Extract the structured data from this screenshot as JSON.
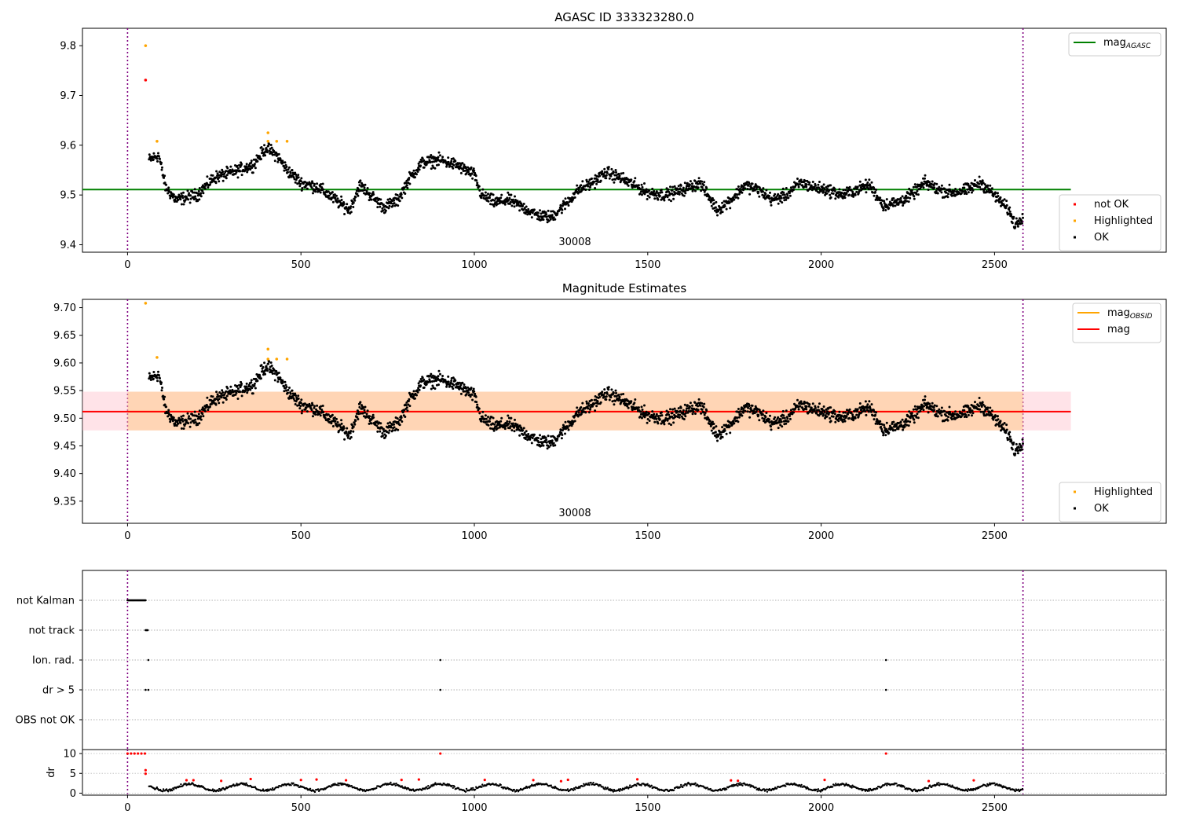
{
  "chart_data": [
    {
      "type": "scatter",
      "title": "AGASC ID 333323280.0",
      "annotation": "30008",
      "xlim": [
        -130,
        2995
      ],
      "ylim": [
        9.385,
        9.835
      ],
      "xticks": [
        0,
        500,
        1000,
        1500,
        2000,
        2500
      ],
      "yticks": [
        9.4,
        9.5,
        9.6,
        9.7,
        9.8
      ],
      "vlines": [
        0,
        2582
      ],
      "hline": {
        "name": "mag_AGASC",
        "value": 9.511,
        "x": [
          -130,
          2720
        ],
        "color": "#008000"
      },
      "legend_top": [
        {
          "label": "mag",
          "sub": "AGASC",
          "color": "#008000",
          "kind": "line"
        }
      ],
      "legend_bottom": [
        {
          "label": "not OK",
          "color": "#ff0000",
          "kind": "dot"
        },
        {
          "label": "Highlighted",
          "color": "#ffa500",
          "kind": "dot"
        },
        {
          "label": "OK",
          "color": "#000000",
          "kind": "dot"
        }
      ],
      "trend": [
        [
          60,
          9.57
        ],
        [
          90,
          9.58
        ],
        [
          110,
          9.515
        ],
        [
          140,
          9.49
        ],
        [
          200,
          9.5
        ],
        [
          250,
          9.535
        ],
        [
          300,
          9.545
        ],
        [
          360,
          9.56
        ],
        [
          400,
          9.595
        ],
        [
          430,
          9.58
        ],
        [
          460,
          9.55
        ],
        [
          500,
          9.525
        ],
        [
          550,
          9.515
        ],
        [
          600,
          9.49
        ],
        [
          640,
          9.47
        ],
        [
          670,
          9.52
        ],
        [
          700,
          9.5
        ],
        [
          740,
          9.475
        ],
        [
          780,
          9.49
        ],
        [
          810,
          9.53
        ],
        [
          850,
          9.565
        ],
        [
          900,
          9.57
        ],
        [
          950,
          9.56
        ],
        [
          1000,
          9.54
        ],
        [
          1020,
          9.5
        ],
        [
          1060,
          9.485
        ],
        [
          1100,
          9.49
        ],
        [
          1140,
          9.475
        ],
        [
          1180,
          9.46
        ],
        [
          1220,
          9.455
        ],
        [
          1260,
          9.48
        ],
        [
          1300,
          9.51
        ],
        [
          1340,
          9.525
        ],
        [
          1380,
          9.545
        ],
        [
          1420,
          9.535
        ],
        [
          1460,
          9.52
        ],
        [
          1500,
          9.505
        ],
        [
          1550,
          9.5
        ],
        [
          1600,
          9.51
        ],
        [
          1650,
          9.525
        ],
        [
          1700,
          9.47
        ],
        [
          1740,
          9.49
        ],
        [
          1780,
          9.52
        ],
        [
          1820,
          9.51
        ],
        [
          1860,
          9.49
        ],
        [
          1900,
          9.5
        ],
        [
          1940,
          9.525
        ],
        [
          1980,
          9.515
        ],
        [
          2020,
          9.51
        ],
        [
          2060,
          9.5
        ],
        [
          2100,
          9.51
        ],
        [
          2140,
          9.52
        ],
        [
          2180,
          9.48
        ],
        [
          2220,
          9.485
        ],
        [
          2260,
          9.5
        ],
        [
          2300,
          9.525
        ],
        [
          2340,
          9.51
        ],
        [
          2380,
          9.505
        ],
        [
          2420,
          9.51
        ],
        [
          2460,
          9.525
        ],
        [
          2500,
          9.5
        ],
        [
          2540,
          9.47
        ],
        [
          2560,
          9.44
        ],
        [
          2582,
          9.46
        ]
      ],
      "highlighted": [
        [
          52,
          9.8
        ],
        [
          85,
          9.608
        ],
        [
          405,
          9.625
        ],
        [
          430,
          9.608
        ],
        [
          460,
          9.608
        ],
        [
          405,
          9.608
        ]
      ],
      "not_ok": [
        [
          52,
          9.731
        ]
      ]
    },
    {
      "type": "scatter",
      "title": "Magnitude Estimates",
      "annotation": "30008",
      "xlim": [
        -130,
        2995
      ],
      "ylim": [
        9.31,
        9.715
      ],
      "xticks": [
        0,
        500,
        1000,
        1500,
        2000,
        2500
      ],
      "yticks": [
        9.35,
        9.4,
        9.45,
        9.5,
        9.55,
        9.6,
        9.65,
        9.7
      ],
      "vlines": [
        0,
        2582
      ],
      "mag": {
        "value": 9.512,
        "x": [
          -130,
          2720
        ],
        "color": "#ff0000",
        "band": [
          9.478,
          9.548
        ]
      },
      "legend_top": [
        {
          "label": "mag",
          "sub": "OBSID",
          "color": "#ffa500",
          "kind": "line"
        },
        {
          "label": "mag",
          "sub": "",
          "color": "#ff0000",
          "kind": "line"
        }
      ],
      "legend_bottom": [
        {
          "label": "Highlighted",
          "color": "#ffa500",
          "kind": "dot"
        },
        {
          "label": "OK",
          "color": "#000000",
          "kind": "dot"
        }
      ],
      "highlighted": [
        [
          52,
          9.708
        ],
        [
          85,
          9.61
        ],
        [
          405,
          9.625
        ],
        [
          430,
          9.607
        ],
        [
          460,
          9.607
        ],
        [
          405,
          9.607
        ]
      ]
    },
    {
      "type": "scatter",
      "title": "",
      "xlim": [
        -130,
        2995
      ],
      "xticks": [
        0,
        500,
        1000,
        1500,
        2000,
        2500
      ],
      "vlines": [
        0,
        2582
      ],
      "flag_rows": [
        "not Kalman",
        "not track",
        "Ion. rad.",
        "dr > 5",
        "OBS not OK"
      ],
      "flag_points": {
        "not Kalman": {
          "x_range": [
            0,
            52
          ]
        },
        "not track": [
          52,
          54,
          56,
          58
        ],
        "Ion. rad.": [
          60,
          902,
          2187
        ],
        "dr > 5": [
          52,
          60,
          902,
          2187
        ],
        "OBS not OK": []
      },
      "dr": {
        "ylabel": "dr",
        "yticks": [
          0,
          5,
          10
        ],
        "ylim": [
          -0.5,
          11
        ],
        "high_red": [
          [
            0,
            10
          ],
          [
            10,
            10
          ],
          [
            20,
            10
          ],
          [
            30,
            10
          ],
          [
            40,
            10
          ],
          [
            50,
            10
          ],
          [
            902,
            10
          ],
          [
            2187,
            10
          ],
          [
            52,
            5.8
          ],
          [
            52,
            4.9
          ]
        ]
      }
    }
  ]
}
